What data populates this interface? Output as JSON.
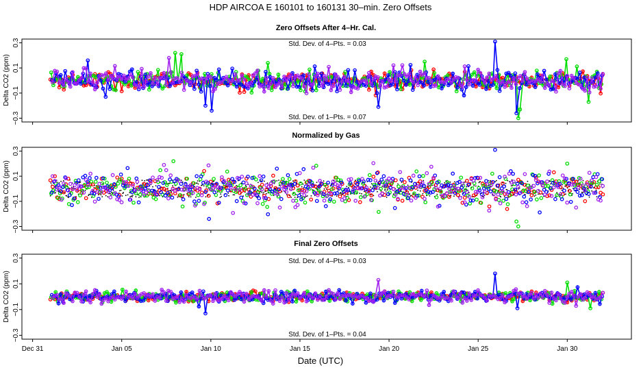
{
  "figure": {
    "title": "HDP    AIRCOA E    160101 to 160131    30–min. Zero Offsets",
    "xlabel": "Date (UTC)",
    "x_ticks": [
      "Dec 31",
      "Jan 05",
      "Jan 10",
      "Jan 15",
      "Jan 20",
      "Jan 25",
      "Jan 30"
    ]
  },
  "panels": [
    {
      "title": "Zero Offsets After 4–Hr. Cal.",
      "ylabel": "Delta CO2 (ppm)",
      "stat_top": "Std. Dev. of 4–Pts. =  0.03",
      "stat_bottom": "Std. Dev. of 1–Pts. =  0.07",
      "y_ticks": [
        "0.3",
        "0.1",
        "−0.1",
        "−0.3"
      ]
    },
    {
      "title": "Normalized by Gas",
      "ylabel": "Delta CO2 (ppm)",
      "stat_top": "",
      "stat_bottom": "",
      "y_ticks": [
        "0.3",
        "0.1",
        "−0.1",
        "−0.3"
      ]
    },
    {
      "title": "Final Zero Offsets",
      "ylabel": "Delta CO2 (ppm)",
      "stat_top": "Std. Dev. of 4–Pts. =  0.03",
      "stat_bottom": "Std. Dev. of 1–Pts. =  0.04",
      "y_ticks": [
        "0.3",
        "0.1",
        "−0.1",
        "−0.3"
      ]
    }
  ],
  "chart_data": [
    {
      "type": "scatter",
      "title": "Zero Offsets After 4–Hr. Cal.",
      "xlabel": "Date (UTC)",
      "ylabel": "Delta CO2 (ppm)",
      "xlim": [
        -0.6,
        33.6
      ],
      "ylim": [
        -0.33,
        0.33
      ],
      "x_tick_values": [
        0,
        5,
        10,
        15,
        20,
        25,
        30
      ],
      "y_tick_values": [
        0.3,
        0.1,
        -0.1,
        -0.3
      ],
      "series_colors": [
        "#ff0000",
        "#00dd00",
        "#0000ff",
        "#a020f0"
      ],
      "mode": "lines+points",
      "noise_sd": 0.045,
      "spikes": [
        {
          "x": 8.0,
          "y": 0.22,
          "series": 1
        },
        {
          "x": 8.35,
          "y": 0.21,
          "series": 1
        },
        {
          "x": 7.65,
          "y": 0.18,
          "series": 3
        },
        {
          "x": 10.05,
          "y": -0.24,
          "series": 2
        },
        {
          "x": 9.7,
          "y": -0.2,
          "series": 2
        },
        {
          "x": 25.95,
          "y": 0.31,
          "series": 2
        },
        {
          "x": 27.25,
          "y": -0.3,
          "series": 1
        },
        {
          "x": 27.15,
          "y": -0.26,
          "series": 2
        },
        {
          "x": 27.35,
          "y": -0.23,
          "series": 1
        },
        {
          "x": 29.95,
          "y": 0.17,
          "series": 1
        },
        {
          "x": 22.0,
          "y": 0.15,
          "series": 1
        },
        {
          "x": 13.2,
          "y": 0.14,
          "series": 1
        },
        {
          "x": 19.4,
          "y": -0.21,
          "series": 2
        },
        {
          "x": 31.2,
          "y": -0.17,
          "series": 1
        },
        {
          "x": 3.1,
          "y": 0.16,
          "series": 2
        },
        {
          "x": 4.1,
          "y": -0.13,
          "series": 2
        }
      ]
    },
    {
      "type": "scatter",
      "title": "Normalized by Gas",
      "xlabel": "Date (UTC)",
      "ylabel": "Delta CO2 (ppm)",
      "xlim": [
        -0.6,
        33.6
      ],
      "ylim": [
        -0.33,
        0.33
      ],
      "x_tick_values": [
        0,
        5,
        10,
        15,
        20,
        25,
        30
      ],
      "y_tick_values": [
        0.3,
        0.1,
        -0.1,
        -0.3
      ],
      "series_colors": [
        "#ff0000",
        "#00dd00",
        "#0000ff",
        "#a020f0"
      ],
      "mode": "points",
      "noise_sd": 0.07,
      "normalized_band": {
        "y_center": 0.0,
        "half_width": 0.07,
        "color": "#000000"
      },
      "spikes": [
        {
          "x": 25.95,
          "y": 0.31,
          "series": 2
        },
        {
          "x": 27.25,
          "y": -0.3,
          "series": 1
        },
        {
          "x": 7.9,
          "y": 0.22,
          "series": 1
        },
        {
          "x": 9.9,
          "y": -0.24,
          "series": 2
        },
        {
          "x": 30.0,
          "y": 0.2,
          "series": 1
        },
        {
          "x": 27.15,
          "y": -0.26,
          "series": 1
        }
      ]
    },
    {
      "type": "scatter",
      "title": "Final Zero Offsets",
      "xlabel": "Date (UTC)",
      "ylabel": "Delta CO2 (ppm)",
      "xlim": [
        -0.6,
        33.6
      ],
      "ylim": [
        -0.33,
        0.33
      ],
      "x_tick_values": [
        0,
        5,
        10,
        15,
        20,
        25,
        30
      ],
      "y_tick_values": [
        0.3,
        0.1,
        -0.1,
        -0.3
      ],
      "series_colors": [
        "#ff0000",
        "#00dd00",
        "#0000ff",
        "#a020f0"
      ],
      "mode": "lines+points",
      "noise_sd": 0.025,
      "spikes": [
        {
          "x": 25.95,
          "y": 0.18,
          "series": 2
        },
        {
          "x": 19.4,
          "y": 0.13,
          "series": 3
        },
        {
          "x": 9.7,
          "y": -0.13,
          "series": 2
        },
        {
          "x": 27.2,
          "y": -0.09,
          "series": 2
        },
        {
          "x": 30.0,
          "y": 0.11,
          "series": 1
        },
        {
          "x": 31.3,
          "y": -0.09,
          "series": 1
        }
      ]
    }
  ]
}
